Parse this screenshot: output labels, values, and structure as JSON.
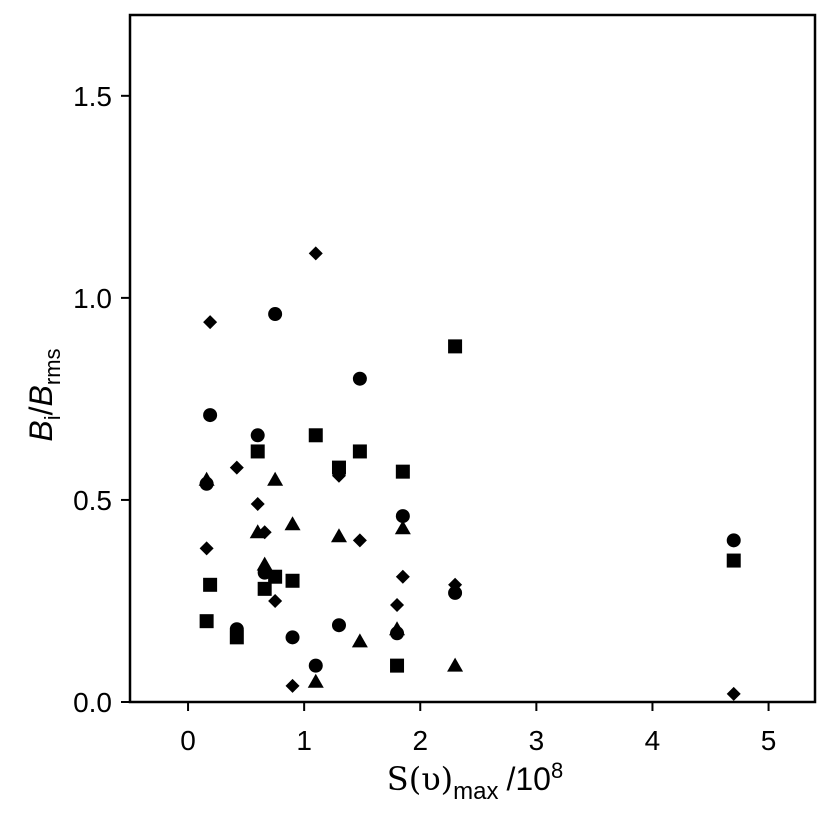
{
  "chart_data": {
    "type": "scatter",
    "xlim": [
      -0.5,
      5.4
    ],
    "ylim": [
      0,
      1.7
    ],
    "x_ticks": [
      0,
      1,
      2,
      3,
      4,
      5
    ],
    "x_tick_labels": [
      "0",
      "1",
      "2",
      "3",
      "4",
      "5"
    ],
    "y_ticks": [
      0,
      0.5,
      1,
      1.5
    ],
    "y_tick_labels": [
      "0.0",
      "0.5",
      "1.0",
      "1.5"
    ],
    "xlabel": {
      "main": "S(υ)",
      "sub": "max",
      "suffix": "/10",
      "sup": "8"
    },
    "ylabel": {
      "b1": "B",
      "sub1": "i",
      "slash": "/",
      "b2": "B",
      "sub2": "rms"
    },
    "grid": false,
    "legend": "none",
    "marker_color": "#000000",
    "series": [
      {
        "marker": "circle",
        "points": [
          [
            0.16,
            0.54
          ],
          [
            0.19,
            0.71
          ],
          [
            0.42,
            0.18
          ],
          [
            0.6,
            0.66
          ],
          [
            0.66,
            0.32
          ],
          [
            0.75,
            0.96
          ],
          [
            0.9,
            0.16
          ],
          [
            1.1,
            0.09
          ],
          [
            1.3,
            0.19
          ],
          [
            1.48,
            0.8
          ],
          [
            1.8,
            0.17
          ],
          [
            1.85,
            0.46
          ],
          [
            2.3,
            0.27
          ],
          [
            4.7,
            0.4
          ]
        ]
      },
      {
        "marker": "square",
        "points": [
          [
            0.16,
            0.2
          ],
          [
            0.19,
            0.29
          ],
          [
            0.42,
            0.16
          ],
          [
            0.6,
            0.62
          ],
          [
            0.66,
            0.28
          ],
          [
            0.75,
            0.31
          ],
          [
            0.9,
            0.3
          ],
          [
            1.1,
            0.66
          ],
          [
            1.3,
            0.58
          ],
          [
            1.48,
            0.62
          ],
          [
            1.8,
            0.09
          ],
          [
            1.85,
            0.57
          ],
          [
            2.3,
            0.88
          ],
          [
            4.7,
            0.35
          ]
        ]
      },
      {
        "marker": "triangle",
        "points": [
          [
            0.16,
            0.55
          ],
          [
            0.6,
            0.42
          ],
          [
            0.66,
            0.34
          ],
          [
            0.75,
            0.55
          ],
          [
            0.9,
            0.44
          ],
          [
            1.1,
            0.05
          ],
          [
            1.3,
            0.41
          ],
          [
            1.48,
            0.15
          ],
          [
            1.8,
            0.18
          ],
          [
            1.85,
            0.43
          ],
          [
            2.3,
            0.09
          ]
        ]
      },
      {
        "marker": "diamond",
        "points": [
          [
            0.16,
            0.38
          ],
          [
            0.19,
            0.94
          ],
          [
            0.42,
            0.58
          ],
          [
            0.6,
            0.49
          ],
          [
            0.66,
            0.42
          ],
          [
            0.75,
            0.25
          ],
          [
            0.9,
            0.04
          ],
          [
            1.1,
            1.11
          ],
          [
            1.3,
            0.56
          ],
          [
            1.48,
            0.4
          ],
          [
            1.8,
            0.24
          ],
          [
            1.85,
            0.31
          ],
          [
            2.3,
            0.29
          ],
          [
            4.7,
            0.02
          ]
        ]
      }
    ]
  }
}
